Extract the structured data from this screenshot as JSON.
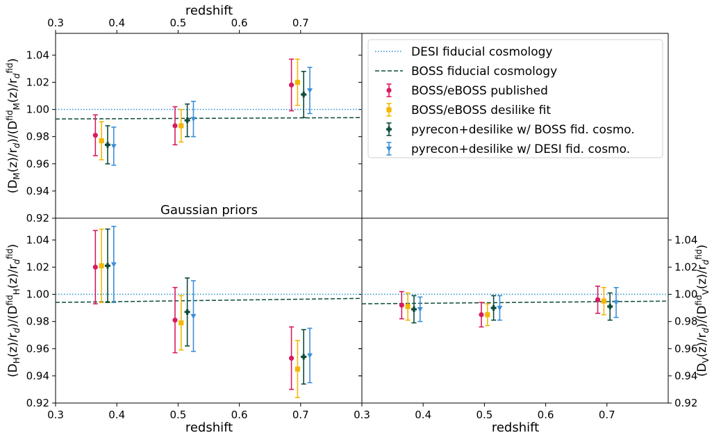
{
  "chart_data": {
    "type": "scatter",
    "top_axis_label": "redshift",
    "top_tick_labels": [
      "0.3",
      "0.4",
      "0.5",
      "0.6",
      "0.7"
    ],
    "legend_placement": "upper panel right, top",
    "series": [
      {
        "key": "desi_fid",
        "name": "DESI fiducial cosmology",
        "color": "#1f8fcf",
        "style": "dotted-line"
      },
      {
        "key": "boss_fid",
        "name": "BOSS fiducial cosmology",
        "color": "#0b4a3a",
        "style": "dashed-line"
      },
      {
        "key": "published",
        "name": "BOSS/eBOSS published",
        "color": "#d81b60",
        "marker": "circle"
      },
      {
        "key": "desilike",
        "name": "BOSS/eBOSS desilike fit",
        "color": "#f2b705",
        "marker": "square"
      },
      {
        "key": "pyrecon_boss",
        "name": "pyrecon+desilike w/ BOSS fid. cosmo.",
        "color": "#0b4a3a",
        "marker": "cross"
      },
      {
        "key": "pyrecon_desi",
        "name": "pyrecon+desilike w/ DESI fid. cosmo.",
        "color": "#3a8fd8",
        "marker": "triangle-down"
      }
    ],
    "panels": [
      {
        "id": "DM",
        "ylabel_main": "(D",
        "ylabel_sub": "M",
        "ylabel_rest": "(z)/r",
        "ylabel_d": "d",
        "ylabel_mid": ")/(D",
        "ylabel_sup": "fid",
        "ylabel_sub2": "M",
        "ylabel_tail": "(z)/r",
        "ylabel_d2": "d",
        "ylabel_sup2": "fid",
        "ylabel_end": ")",
        "ylim": [
          0.92,
          1.056
        ],
        "xlim": [
          0.3,
          0.8
        ],
        "y_ticks": [
          "0.92",
          "0.94",
          "0.96",
          "0.98",
          "1.00",
          "1.02",
          "1.04"
        ],
        "x_ticks": [],
        "annotation": "",
        "desi_line": [
          [
            0.3,
            1.0
          ],
          [
            0.8,
            1.0
          ]
        ],
        "boss_line": [
          [
            0.3,
            0.993
          ],
          [
            0.8,
            0.994
          ]
        ],
        "points": {
          "published": [
            {
              "x": 0.365,
              "y": 0.981,
              "err": 0.015
            },
            {
              "x": 0.495,
              "y": 0.988,
              "err": 0.014
            },
            {
              "x": 0.685,
              "y": 1.018,
              "err": 0.019
            }
          ],
          "desilike": [
            {
              "x": 0.375,
              "y": 0.977,
              "err": 0.014
            },
            {
              "x": 0.505,
              "y": 0.988,
              "err": 0.012
            },
            {
              "x": 0.695,
              "y": 1.02,
              "err": 0.017
            }
          ],
          "pyrecon_boss": [
            {
              "x": 0.385,
              "y": 0.974,
              "err": 0.014
            },
            {
              "x": 0.515,
              "y": 0.992,
              "err": 0.012
            },
            {
              "x": 0.705,
              "y": 1.011,
              "err": 0.017
            }
          ],
          "pyrecon_desi": [
            {
              "x": 0.395,
              "y": 0.973,
              "err": 0.014
            },
            {
              "x": 0.525,
              "y": 0.993,
              "err": 0.013
            },
            {
              "x": 0.715,
              "y": 1.014,
              "err": 0.017
            }
          ]
        }
      },
      {
        "id": "DH",
        "ylabel_main": "(D",
        "ylabel_sub": "H",
        "ylabel_rest": "(z)/r",
        "ylabel_d": "d",
        "ylabel_mid": ")/(D",
        "ylabel_sup": "fid",
        "ylabel_sub2": "H",
        "ylabel_tail": "(z)/r",
        "ylabel_d2": "d",
        "ylabel_sup2": "fid",
        "ylabel_end": ")",
        "ylim": [
          0.92,
          1.056
        ],
        "xlim": [
          0.3,
          0.8
        ],
        "y_ticks": [
          "0.92",
          "0.94",
          "0.96",
          "0.98",
          "1.00",
          "1.02",
          "1.04"
        ],
        "x_ticks": [
          "0.3",
          "0.4",
          "0.5",
          "0.6",
          "0.7"
        ],
        "xlabel": "redshift",
        "annotation": "Gaussian priors",
        "desi_line": [
          [
            0.3,
            1.0
          ],
          [
            0.8,
            1.0
          ]
        ],
        "boss_line": [
          [
            0.3,
            0.994
          ],
          [
            0.8,
            0.997
          ]
        ],
        "points": {
          "published": [
            {
              "x": 0.365,
              "y": 1.02,
              "err": 0.027
            },
            {
              "x": 0.495,
              "y": 0.981,
              "err": 0.024
            },
            {
              "x": 0.685,
              "y": 0.953,
              "err": 0.023
            }
          ],
          "desilike": [
            {
              "x": 0.375,
              "y": 1.021,
              "err": 0.027
            },
            {
              "x": 0.505,
              "y": 0.979,
              "err": 0.02
            },
            {
              "x": 0.695,
              "y": 0.945,
              "err": 0.021
            }
          ],
          "pyrecon_boss": [
            {
              "x": 0.385,
              "y": 1.021,
              "err": 0.027
            },
            {
              "x": 0.515,
              "y": 0.987,
              "err": 0.025
            },
            {
              "x": 0.705,
              "y": 0.954,
              "err": 0.02
            }
          ],
          "pyrecon_desi": [
            {
              "x": 0.395,
              "y": 1.022,
              "err": 0.028
            },
            {
              "x": 0.525,
              "y": 0.984,
              "err": 0.026
            },
            {
              "x": 0.715,
              "y": 0.955,
              "err": 0.02
            }
          ]
        }
      },
      {
        "id": "DV",
        "ylabel_main": "(D",
        "ylabel_sub": "V",
        "ylabel_rest": "(z)/r",
        "ylabel_d": "d",
        "ylabel_mid": ")/(D",
        "ylabel_sup": "fid",
        "ylabel_sub2": "V",
        "ylabel_tail": "(z)/r",
        "ylabel_d2": "d",
        "ylabel_sup2": "fid",
        "ylabel_end": ")",
        "ylim": [
          0.92,
          1.056
        ],
        "xlim": [
          0.3,
          0.8
        ],
        "y_ticks": [
          "0.92",
          "0.94",
          "0.96",
          "0.98",
          "1.00",
          "1.02",
          "1.04"
        ],
        "x_ticks": [
          "0.3",
          "0.4",
          "0.5",
          "0.6",
          "0.7"
        ],
        "xlabel": "redshift",
        "annotation": "",
        "desi_line": [
          [
            0.3,
            1.0
          ],
          [
            0.8,
            1.0
          ]
        ],
        "boss_line": [
          [
            0.3,
            0.993
          ],
          [
            0.8,
            0.995
          ]
        ],
        "points": {
          "published": [
            {
              "x": 0.365,
              "y": 0.992,
              "err": 0.01
            },
            {
              "x": 0.495,
              "y": 0.985,
              "err": 0.009
            },
            {
              "x": 0.685,
              "y": 0.996,
              "err": 0.01
            }
          ],
          "desilike": [
            {
              "x": 0.375,
              "y": 0.991,
              "err": 0.01
            },
            {
              "x": 0.505,
              "y": 0.985,
              "err": 0.008
            },
            {
              "x": 0.695,
              "y": 0.995,
              "err": 0.01
            }
          ],
          "pyrecon_boss": [
            {
              "x": 0.385,
              "y": 0.989,
              "err": 0.01
            },
            {
              "x": 0.515,
              "y": 0.99,
              "err": 0.009
            },
            {
              "x": 0.705,
              "y": 0.991,
              "err": 0.01
            }
          ],
          "pyrecon_desi": [
            {
              "x": 0.395,
              "y": 0.989,
              "err": 0.009
            },
            {
              "x": 0.525,
              "y": 0.99,
              "err": 0.009
            },
            {
              "x": 0.715,
              "y": 0.994,
              "err": 0.011
            }
          ]
        }
      }
    ]
  }
}
